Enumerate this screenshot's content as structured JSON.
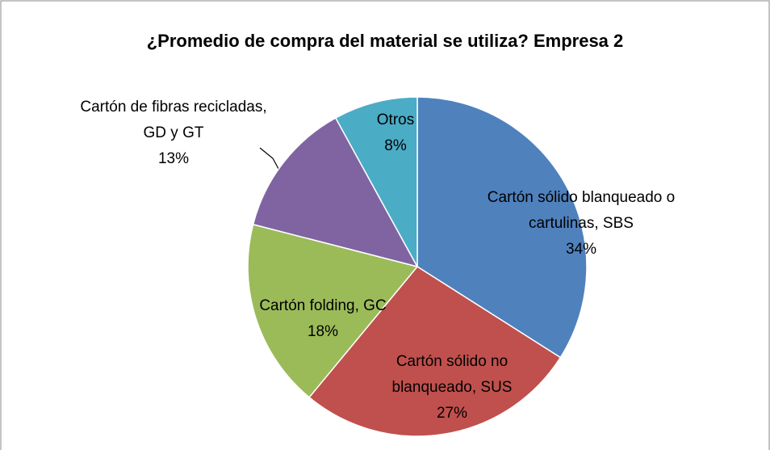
{
  "chart_data": {
    "type": "pie",
    "title": "¿Promedio de compra del material se utiliza? Empresa 2",
    "categories": [
      "Cartón sólido blanqueado o cartulinas, SBS",
      "Cartón sólido no blanqueado, SUS",
      "Cartón folding, GC",
      "Cartón de fibras recicladas, GD y GT",
      "Otros"
    ],
    "values": [
      34,
      27,
      18,
      13,
      8
    ],
    "value_labels": [
      "34%",
      "27%",
      "18%",
      "13%",
      "8%"
    ],
    "colors": [
      "#4f81bd",
      "#c0504d",
      "#9bbb59",
      "#8064a2",
      "#4bacc6"
    ]
  }
}
